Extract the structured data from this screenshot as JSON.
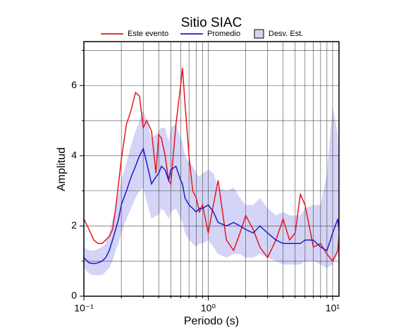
{
  "chart_data": {
    "type": "line",
    "title": "Sitio SIAC",
    "x_label": "Periodo (s)",
    "y_label": "Amplitud",
    "log_x": true,
    "grid": true,
    "xlim": [
      0.1,
      11.25
    ],
    "ylim": [
      0,
      7.25
    ],
    "xticks": [
      {
        "value": 0.1,
        "label": "10⁻¹"
      },
      {
        "value": 1,
        "label": "10⁰"
      },
      {
        "value": 10,
        "label": "10¹"
      }
    ],
    "xminorticks": [
      0.2,
      0.3,
      0.4,
      0.5,
      0.6,
      0.7,
      0.8,
      0.9,
      2,
      3,
      4,
      5,
      6,
      7,
      8,
      9
    ],
    "yticks": [
      0,
      2,
      4,
      6
    ],
    "yminorticks": [
      1,
      3,
      5,
      7
    ],
    "x": [
      0.1,
      0.11,
      0.12,
      0.13,
      0.14,
      0.15,
      0.16,
      0.17,
      0.18,
      0.19,
      0.2,
      0.22,
      0.24,
      0.26,
      0.28,
      0.3,
      0.32,
      0.35,
      0.38,
      0.4,
      0.42,
      0.45,
      0.48,
      0.5,
      0.55,
      0.6,
      0.62,
      0.65,
      0.7,
      0.75,
      0.8,
      0.85,
      0.9,
      1.0,
      1.1,
      1.2,
      1.4,
      1.6,
      1.8,
      2.0,
      2.3,
      2.6,
      3.0,
      3.5,
      4.0,
      4.5,
      5.0,
      5.5,
      6.0,
      7.0,
      8.0,
      9.0,
      10,
      11,
      11.25
    ],
    "band": {
      "name": "Desv. Est.",
      "color": "#d4d4f7",
      "lower": [
        0.8,
        0.65,
        0.6,
        0.6,
        0.6,
        0.7,
        0.8,
        1.0,
        1.3,
        1.5,
        1.8,
        2.2,
        2.5,
        2.8,
        3.0,
        3.1,
        2.7,
        2.2,
        2.3,
        2.3,
        2.5,
        2.4,
        2.2,
        2.4,
        2.5,
        2.2,
        2.1,
        1.8,
        1.6,
        1.5,
        1.4,
        1.5,
        1.5,
        1.6,
        1.4,
        1.2,
        1.1,
        1.2,
        1.2,
        1.1,
        1.1,
        1.2,
        1.1,
        1.0,
        0.9,
        0.9,
        0.9,
        0.9,
        1.0,
        1.0,
        0.9,
        0.8,
        0.9,
        1.2,
        1.0
      ],
      "upper": [
        1.4,
        1.3,
        1.3,
        1.35,
        1.4,
        1.5,
        1.8,
        2.2,
        2.5,
        2.9,
        3.3,
        3.8,
        4.3,
        4.7,
        5.0,
        5.3,
        5.0,
        4.5,
        4.6,
        4.7,
        4.8,
        4.8,
        4.4,
        4.8,
        4.9,
        4.5,
        4.4,
        4.0,
        3.8,
        3.7,
        3.5,
        3.4,
        3.5,
        3.6,
        3.5,
        3.1,
        3.0,
        3.1,
        2.8,
        2.6,
        2.6,
        2.8,
        2.5,
        2.3,
        2.4,
        2.3,
        2.3,
        2.3,
        2.5,
        2.6,
        2.6,
        3.5,
        5.4,
        4.6,
        3.8
      ]
    },
    "series": [
      {
        "name": "Este evento",
        "color": "#e8141c",
        "values": [
          2.2,
          1.9,
          1.6,
          1.5,
          1.5,
          1.6,
          1.7,
          1.9,
          2.5,
          3.2,
          3.9,
          4.9,
          5.3,
          5.8,
          5.7,
          4.8,
          5.0,
          4.7,
          3.5,
          4.6,
          4.5,
          4.0,
          3.3,
          3.2,
          4.9,
          6.0,
          6.5,
          5.5,
          4.0,
          3.0,
          2.8,
          2.4,
          2.6,
          1.8,
          2.6,
          3.3,
          1.6,
          1.3,
          1.8,
          2.3,
          1.9,
          1.4,
          1.1,
          1.6,
          2.2,
          1.6,
          1.8,
          2.9,
          2.6,
          1.4,
          1.5,
          1.2,
          1.0,
          1.3,
          1.7
        ]
      },
      {
        "name": "Promedio",
        "color": "#1a1ad0",
        "values": [
          1.1,
          0.95,
          0.93,
          0.95,
          1.0,
          1.1,
          1.3,
          1.6,
          1.9,
          2.2,
          2.6,
          3.0,
          3.4,
          3.7,
          4.0,
          4.2,
          3.8,
          3.2,
          3.4,
          3.5,
          3.7,
          3.6,
          3.3,
          3.6,
          3.7,
          3.3,
          3.2,
          2.8,
          2.6,
          2.5,
          2.4,
          2.5,
          2.5,
          2.6,
          2.4,
          2.1,
          2.0,
          2.1,
          2.0,
          1.9,
          1.8,
          2.0,
          1.8,
          1.6,
          1.5,
          1.5,
          1.5,
          1.5,
          1.6,
          1.6,
          1.4,
          1.3,
          1.8,
          2.2,
          1.9
        ]
      }
    ]
  }
}
